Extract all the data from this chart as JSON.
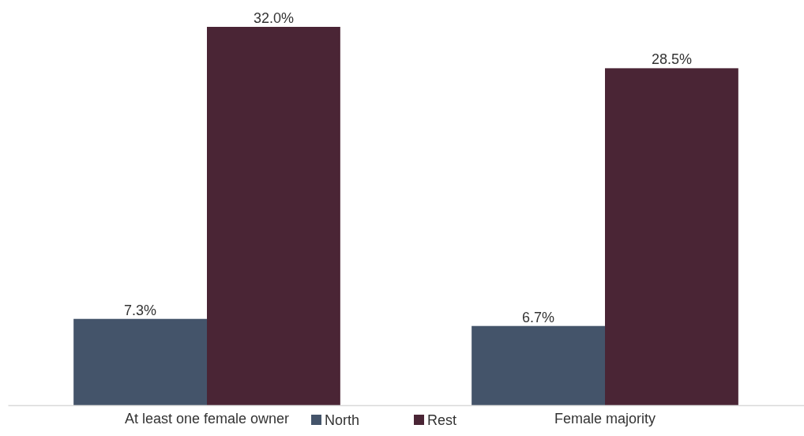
{
  "chart_data": {
    "type": "bar",
    "categories": [
      "At least one female owner",
      "Female majority"
    ],
    "series": [
      {
        "name": "North",
        "color": "#44546a",
        "values": [
          7.3,
          6.7
        ],
        "value_labels": [
          "7.3%",
          "6.7%"
        ]
      },
      {
        "name": "Rest",
        "color": "#4a2535",
        "values": [
          32.0,
          28.5
        ],
        "value_labels": [
          "32.0%",
          "28.5%"
        ]
      }
    ],
    "legend": "bottom",
    "grid": false
  }
}
